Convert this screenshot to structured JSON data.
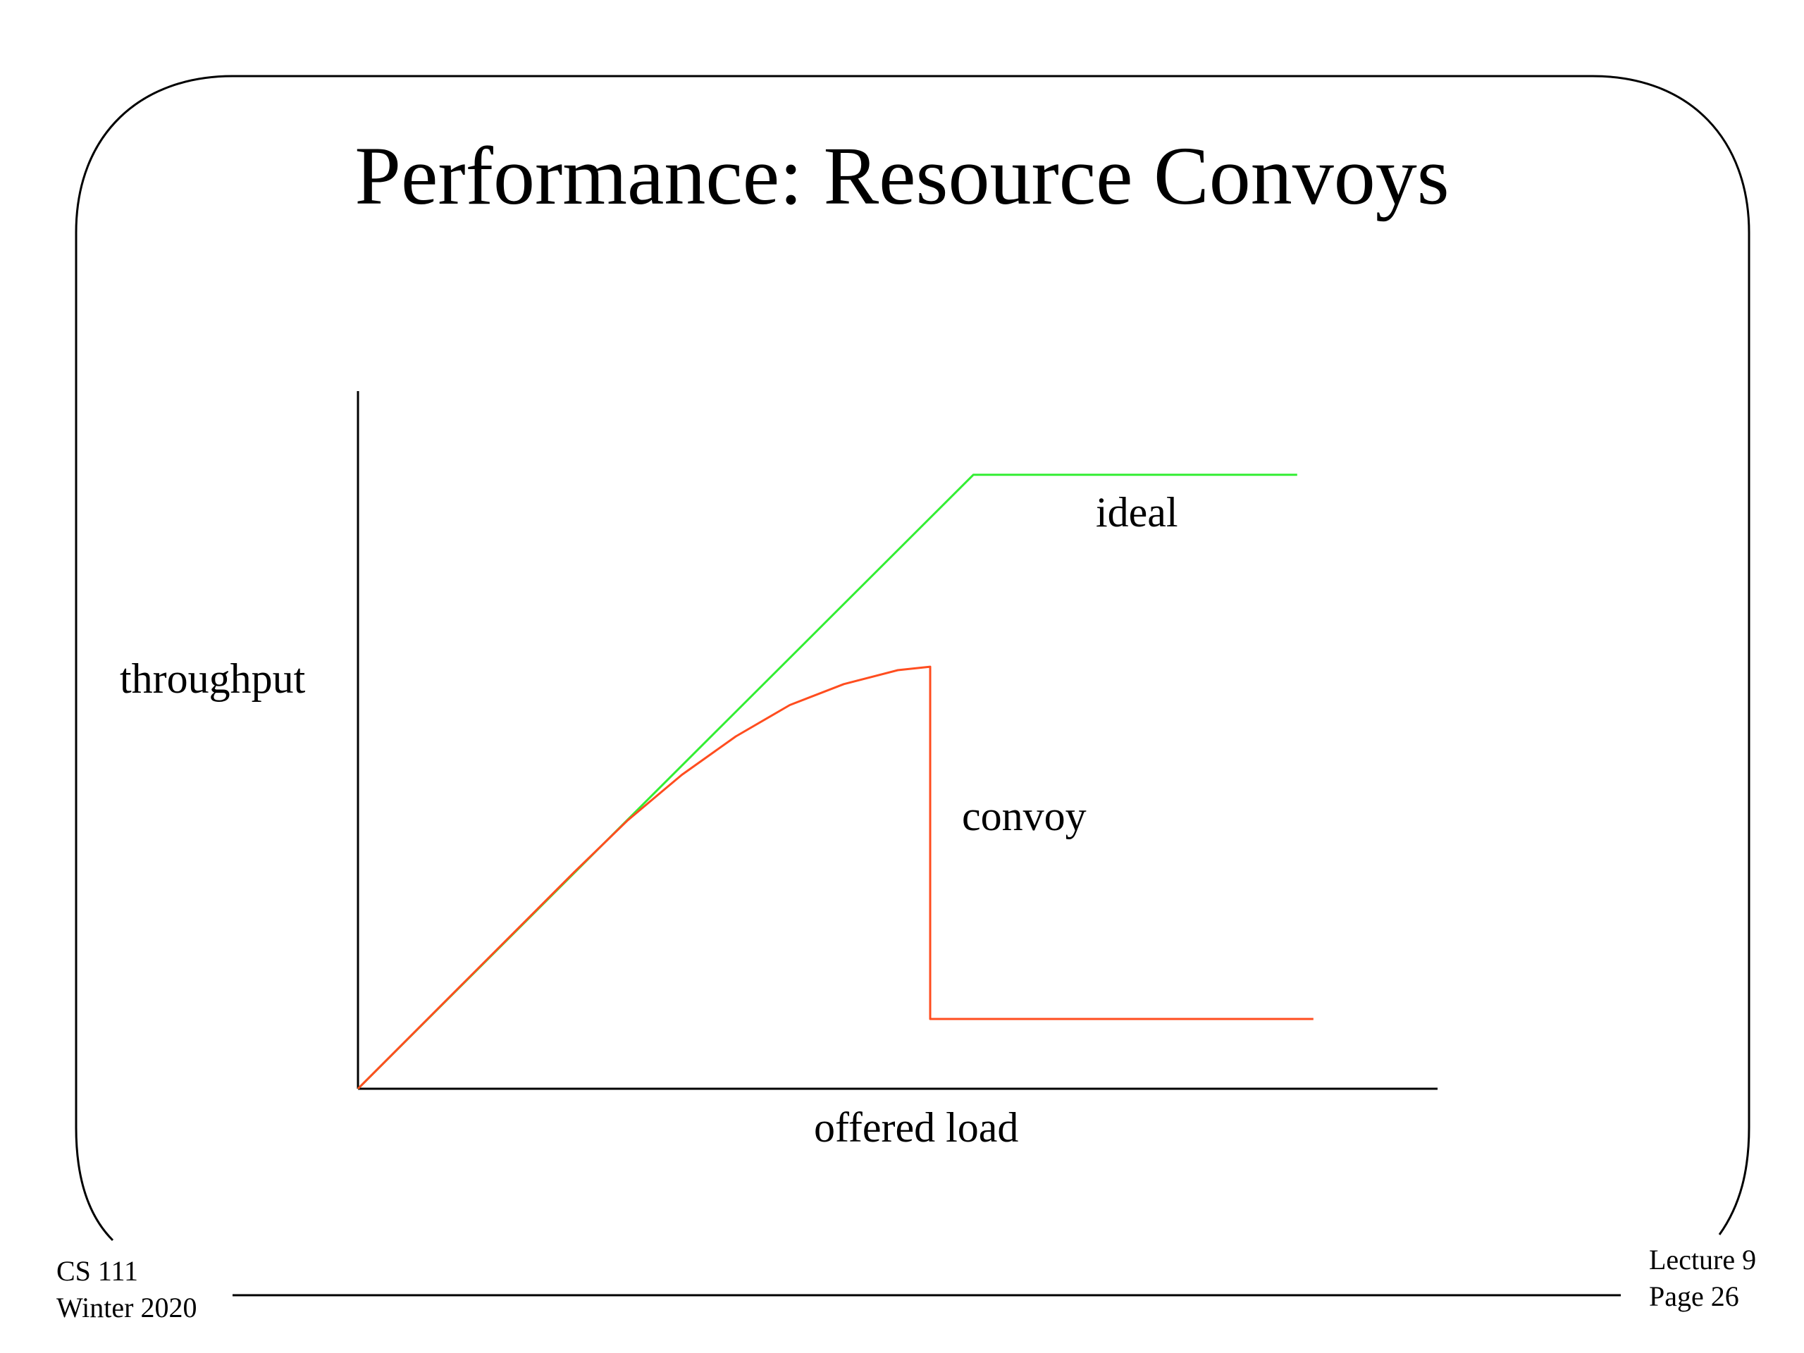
{
  "slide": {
    "title": "Performance: Resource Convoys"
  },
  "chart_data": {
    "type": "line",
    "title": "",
    "xlabel": "offered load",
    "ylabel": "throughput",
    "xlim": [
      0,
      10
    ],
    "ylim": [
      0,
      10
    ],
    "grid": false,
    "series": [
      {
        "name": "ideal",
        "color": "#33ee33",
        "points": [
          [
            0,
            0
          ],
          [
            5.7,
            8.8
          ],
          [
            8.7,
            8.8
          ]
        ]
      },
      {
        "name": "convoy",
        "color": "#ff4d1f",
        "points": [
          [
            0,
            0
          ],
          [
            1.0,
            1.55
          ],
          [
            2.0,
            3.1
          ],
          [
            2.5,
            3.85
          ],
          [
            3.0,
            4.5
          ],
          [
            3.5,
            5.05
          ],
          [
            4.0,
            5.5
          ],
          [
            4.5,
            5.8
          ],
          [
            5.0,
            6.0
          ],
          [
            5.3,
            6.05
          ],
          [
            5.3,
            1.0
          ],
          [
            8.85,
            1.0
          ]
        ]
      }
    ]
  },
  "footer": {
    "course": "CS 111",
    "term": "Winter 2020",
    "lecture": "Lecture 9",
    "page": "Page 26"
  }
}
